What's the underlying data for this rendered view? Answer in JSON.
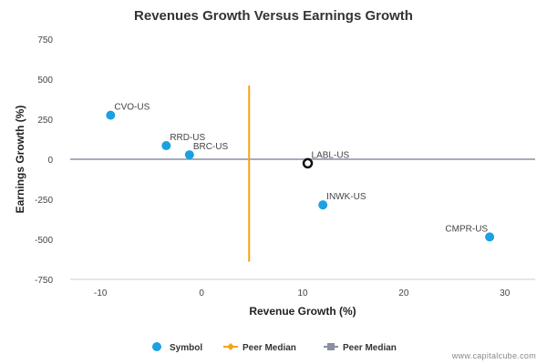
{
  "chart_data": {
    "type": "scatter",
    "title": "Revenues Growth Versus Earnings Growth",
    "xlabel": "Revenue Growth (%)",
    "ylabel": "Earnings Growth (%)",
    "xlim": [
      -13,
      33
    ],
    "ylim": [
      -750,
      750
    ],
    "x_ticks": [
      -10,
      0,
      10,
      20,
      30
    ],
    "y_ticks": [
      750,
      500,
      250,
      0,
      -250,
      -500,
      -750
    ],
    "grid": false,
    "legend_position": "bottom",
    "points": [
      {
        "label": "CVO-US",
        "x": -9.0,
        "y": 275,
        "style": "symbol"
      },
      {
        "label": "RRD-US",
        "x": -3.5,
        "y": 85,
        "style": "symbol"
      },
      {
        "label": "BRC-US",
        "x": -1.2,
        "y": 28,
        "style": "symbol"
      },
      {
        "label": "LABL-US",
        "x": 10.5,
        "y": -25,
        "style": "subject"
      },
      {
        "label": "INWK-US",
        "x": 12.0,
        "y": -285,
        "style": "symbol"
      },
      {
        "label": "CMPR-US",
        "x": 28.5,
        "y": -485,
        "style": "symbol"
      }
    ],
    "peer_median_x": 4.7,
    "peer_median_y": 0,
    "peer_median_x_range": [
      -640,
      460
    ],
    "legend": [
      {
        "label": "Symbol",
        "color": "#1ba1e2",
        "marker": "circle"
      },
      {
        "label": "Peer Median",
        "color": "#f7a21b",
        "marker": "diamond-line"
      },
      {
        "label": "Peer Median",
        "color": "#8c8fa3",
        "marker": "square-line"
      }
    ],
    "colors": {
      "symbol": "#1ba1e2",
      "subject_stroke": "#111111",
      "median_vertical": "#f7a21b",
      "median_horizontal": "#8c8fa3",
      "axis": "#c0d0e0"
    }
  },
  "footer_text": "www.capitalcube.com"
}
